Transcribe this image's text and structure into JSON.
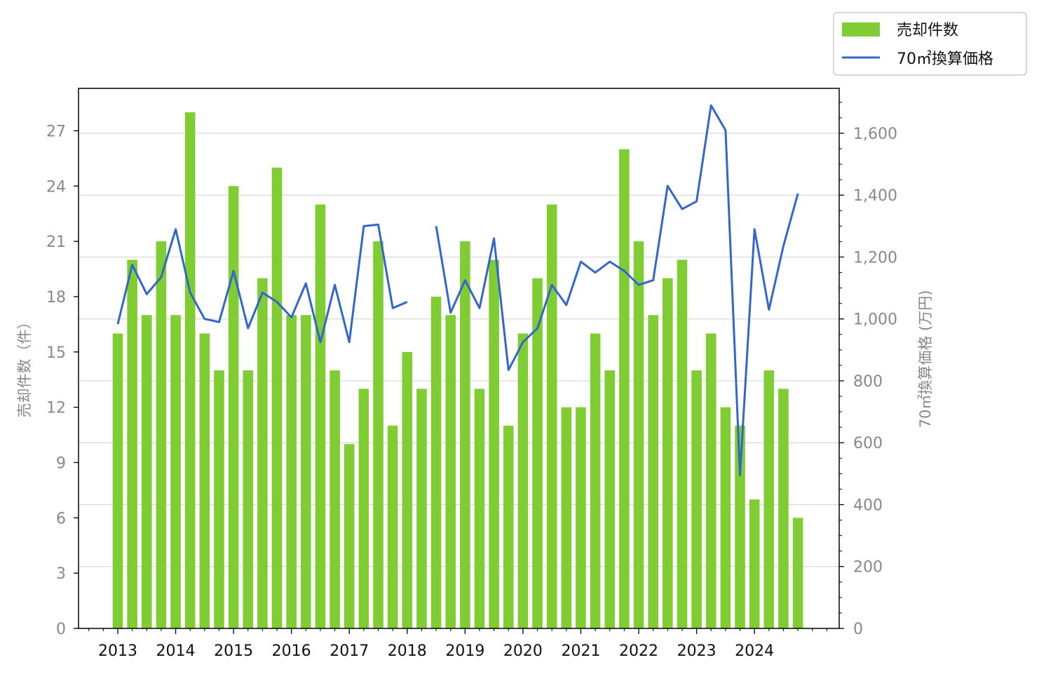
{
  "chart_data": {
    "type": "bar+line",
    "x": [
      "2013-01",
      "2013-04",
      "2013-07",
      "2013-10",
      "2014-01",
      "2014-04",
      "2014-07",
      "2014-10",
      "2015-01",
      "2015-04",
      "2015-07",
      "2015-10",
      "2016-01",
      "2016-04",
      "2016-07",
      "2016-10",
      "2017-01",
      "2017-04",
      "2017-07",
      "2017-10",
      "2018-01",
      "2018-04",
      "2018-07",
      "2018-10",
      "2019-01",
      "2019-04",
      "2019-07",
      "2019-10",
      "2020-01",
      "2020-04",
      "2020-07",
      "2020-10",
      "2021-01",
      "2021-04",
      "2021-07",
      "2021-10",
      "2022-01",
      "2022-04",
      "2022-07",
      "2022-10",
      "2023-01",
      "2023-04",
      "2023-07",
      "2023-10",
      "2024-01",
      "2024-04",
      "2024-07",
      "2024-10"
    ],
    "series": [
      {
        "name": "売却件数",
        "type": "bar",
        "axis": "left",
        "color": "#7fcc33",
        "values": [
          16,
          20,
          17,
          21,
          17,
          28,
          16,
          14,
          24,
          14,
          19,
          25,
          17,
          17,
          23,
          14,
          10,
          13,
          21,
          11,
          15,
          13,
          18,
          17,
          21,
          13,
          20,
          11,
          16,
          19,
          23,
          12,
          12,
          16,
          14,
          26,
          21,
          17,
          19,
          20,
          14,
          16,
          12,
          11,
          7,
          14,
          13,
          6
        ]
      },
      {
        "name": "70㎡換算価格",
        "type": "line",
        "axis": "right",
        "color": "#3366cc",
        "values": [
          983,
          1175,
          1080,
          1135,
          1290,
          1085,
          1000,
          990,
          1155,
          970,
          1085,
          1055,
          1005,
          1115,
          925,
          1110,
          925,
          1300,
          1305,
          1035,
          1055,
          null,
          1300,
          1020,
          1125,
          1035,
          1260,
          835,
          925,
          970,
          1110,
          1045,
          1185,
          1150,
          1185,
          1155,
          1110,
          1125,
          1430,
          1355,
          1380,
          1690,
          1610,
          495,
          1290,
          1030,
          1235,
          1405
        ]
      }
    ],
    "x_ticks": [
      "2013",
      "2014",
      "2015",
      "2016",
      "2017",
      "2018",
      "2019",
      "2020",
      "2021",
      "2022",
      "2023",
      "2024"
    ],
    "y_left": {
      "label": "売却件数（件）",
      "ylim": [
        0,
        29.3
      ],
      "ticks": [
        "0",
        "3",
        "6",
        "9",
        "12",
        "15",
        "18",
        "21",
        "24",
        "27"
      ]
    },
    "y_right": {
      "label": "70㎡換算価格 (万円)",
      "ylim": [
        0,
        1745
      ],
      "ticks": [
        "0",
        "200",
        "400",
        "600",
        "800",
        "1,000",
        "1,200",
        "1,400",
        "1,600"
      ]
    },
    "grid": "horizontal (right axis)",
    "legend": {
      "placement": "top-right, outside",
      "entries": [
        "売却件数",
        "70㎡換算価格"
      ]
    }
  }
}
